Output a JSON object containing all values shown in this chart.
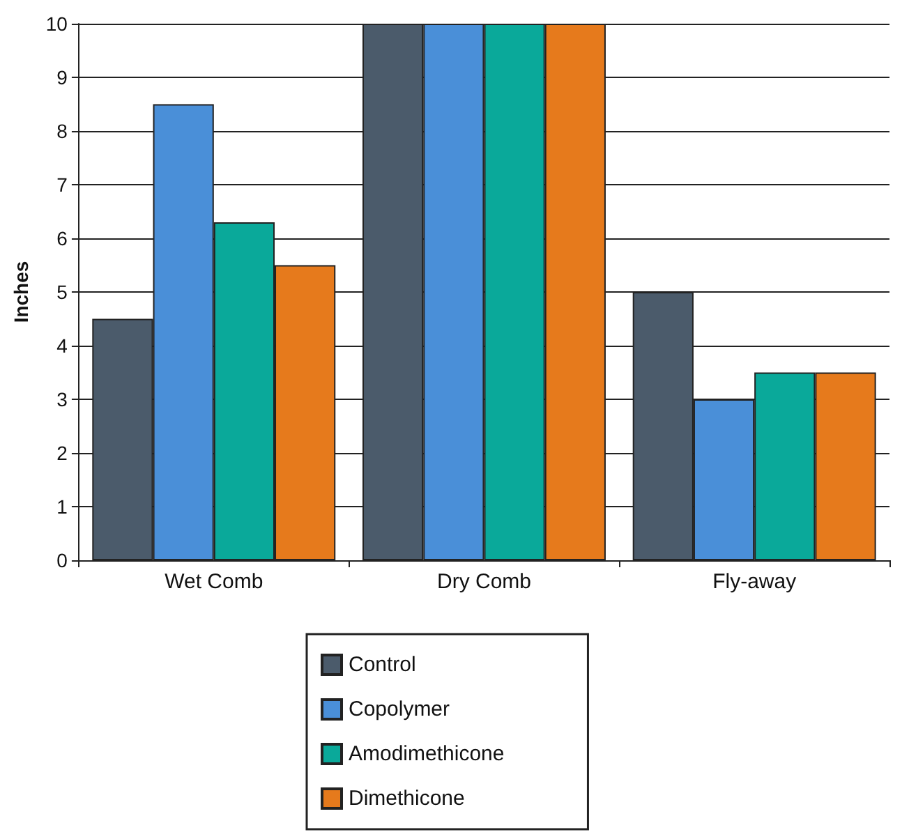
{
  "chart_data": {
    "type": "bar",
    "ylabel": "Inches",
    "categories": [
      "Wet Comb",
      "Dry Comb",
      "Fly-away"
    ],
    "series": [
      {
        "name": "Control",
        "color": "#4b5b6b",
        "values": [
          4.5,
          10,
          5
        ]
      },
      {
        "name": "Copolymer",
        "color": "#4a8fd8",
        "values": [
          8.5,
          10,
          3
        ]
      },
      {
        "name": "Amodimethicone",
        "color": "#0aa99a",
        "values": [
          6.3,
          10,
          3.5
        ]
      },
      {
        "name": "Dimethicone",
        "color": "#e67a1c",
        "values": [
          5.5,
          10,
          3.5
        ]
      }
    ],
    "ylim": [
      0,
      10
    ],
    "yticks": [
      0,
      1,
      2,
      3,
      4,
      5,
      6,
      7,
      8,
      9,
      10
    ],
    "grid": "y",
    "legend": "bottom"
  }
}
